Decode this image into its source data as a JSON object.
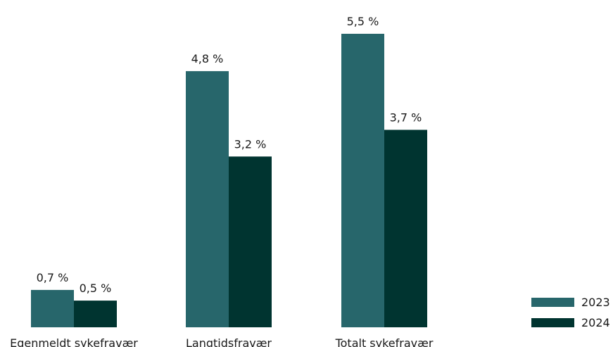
{
  "chart_data": {
    "type": "bar",
    "categories": [
      "Egenmeldt sykefravær",
      "Langtidsfravær",
      "Totalt sykefravær"
    ],
    "series": [
      {
        "name": "2023",
        "values": [
          0.7,
          4.8,
          5.5
        ],
        "labels": [
          "0,7 %",
          "4,8 %",
          "5,5 %"
        ],
        "color": "#27666b"
      },
      {
        "name": "2024",
        "values": [
          0.5,
          3.2,
          3.7
        ],
        "labels": [
          "0,5 %",
          "3,2 %",
          "3,7 %"
        ],
        "color": "#003430"
      }
    ],
    "ylim": [
      0,
      5.5
    ],
    "grid": false,
    "legend_position": "bottom-right"
  }
}
